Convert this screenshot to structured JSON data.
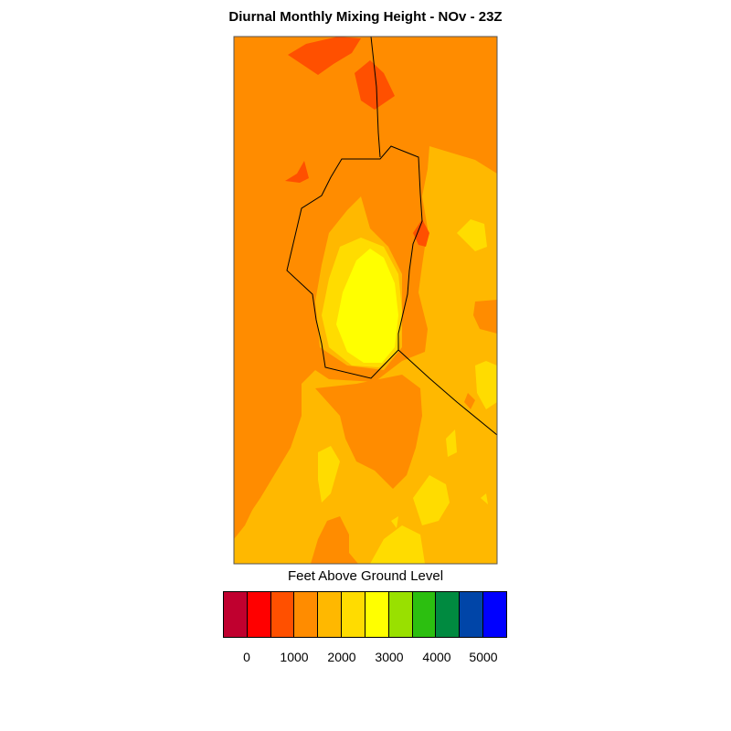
{
  "title": "Diurnal Monthly Mixing Height - NOv - 23Z",
  "legend": {
    "title": "Feet Above Ground Level",
    "colors": [
      "#c0002f",
      "#ff0000",
      "#ff5000",
      "#ff8c00",
      "#ffb800",
      "#ffdc00",
      "#ffff00",
      "#99e000",
      "#2cbf10",
      "#008a40",
      "#0045a8",
      "#0000ff"
    ],
    "ticks": [
      "0",
      "1000",
      "2000",
      "3000",
      "4000",
      "5000"
    ]
  },
  "palette": {
    "c1000": "#ff5000",
    "c1500": "#ff8c00",
    "c2000": "#ffb800",
    "c2500": "#ffdc00",
    "c3000": "#ffff00",
    "boundary": "#000000"
  }
}
